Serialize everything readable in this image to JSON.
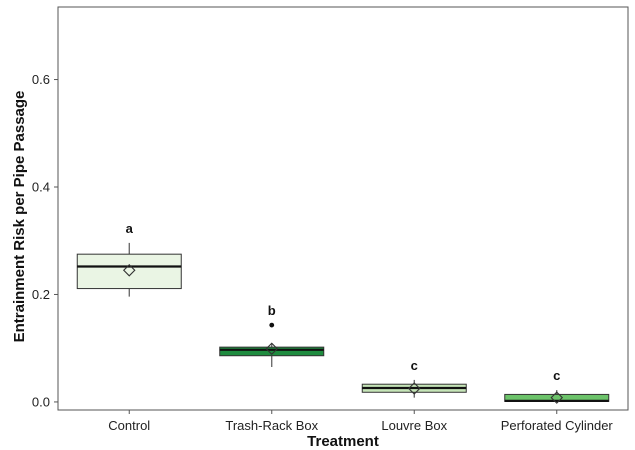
{
  "chart_data": {
    "type": "boxplot",
    "xlabel": "Treatment",
    "ylabel": "Entrainment Risk per Pipe Passage",
    "ylim": [
      -0.015,
      0.735
    ],
    "yticks": [
      "0.0",
      "0.2",
      "0.4",
      "0.6"
    ],
    "ytick_values": [
      0.0,
      0.2,
      0.4,
      0.6
    ],
    "grid": false,
    "legend": "none",
    "categories": [
      "Control",
      "Trash-Rack Box",
      "Louvre Box",
      "Perforated Cylinder"
    ],
    "boxes": [
      {
        "category": "Control",
        "whisker_low": 0.196,
        "q1": 0.211,
        "median": 0.252,
        "q3": 0.275,
        "whisker_high": 0.296,
        "mean": 0.245,
        "outliers": [],
        "significance": "a",
        "fill": "#eaf5e4"
      },
      {
        "category": "Trash-Rack Box",
        "whisker_low": 0.065,
        "q1": 0.086,
        "median": 0.097,
        "q3": 0.102,
        "whisker_high": 0.108,
        "mean": 0.099,
        "outliers": [
          0.143
        ],
        "significance": "b",
        "fill": "#1f8c3f"
      },
      {
        "category": "Louvre Box",
        "whisker_low": 0.008,
        "q1": 0.018,
        "median": 0.026,
        "q3": 0.033,
        "whisker_high": 0.041,
        "mean": 0.025,
        "outliers": [],
        "significance": "c",
        "fill": "#c6e5b8"
      },
      {
        "category": "Perforated Cylinder",
        "whisker_low": 0.0,
        "q1": 0.001,
        "median": 0.002,
        "q3": 0.014,
        "whisker_high": 0.022,
        "mean": 0.008,
        "outliers": [],
        "significance": "c",
        "fill": "#6cc36a"
      }
    ]
  }
}
